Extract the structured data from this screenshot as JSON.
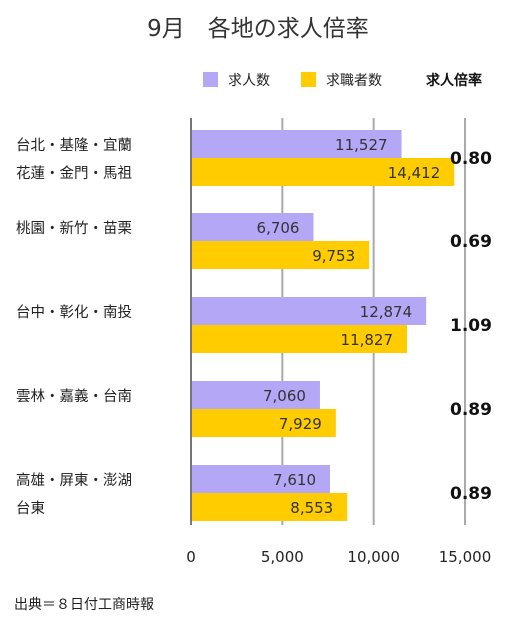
{
  "chart_data": {
    "type": "bar",
    "orientation": "horizontal",
    "title": "9月　各地の求人倍率",
    "categories": [
      [
        "台北・基隆・宜蘭",
        "花蓮・金門・馬祖"
      ],
      [
        "桃園・新竹・苗栗"
      ],
      [
        "台中・彰化・南投"
      ],
      [
        "雲林・嘉義・台南"
      ],
      [
        "高雄・屏東・澎湖",
        "台東"
      ]
    ],
    "series": [
      {
        "name": "求人数",
        "color": "#b4a7f5",
        "values": [
          11527,
          6706,
          12874,
          7060,
          7610
        ],
        "labels": [
          "11,527",
          "6,706",
          "12,874",
          "7,060",
          "7,610"
        ]
      },
      {
        "name": "求職者数",
        "color": "#ffcc00",
        "values": [
          14412,
          9753,
          11827,
          7929,
          8553
        ],
        "labels": [
          "14,412",
          "9,753",
          "11,827",
          "7,929",
          "8,553"
        ]
      }
    ],
    "ratio_header": "求人倍率",
    "ratios": [
      "0.80",
      "0.69",
      "1.09",
      "0.89",
      "0.89"
    ],
    "xlim": [
      0,
      15000
    ],
    "xticks": [
      0,
      5000,
      10000,
      15000
    ],
    "xtick_labels": [
      "0",
      "5,000",
      "10,000",
      "15,000"
    ],
    "grid": true,
    "legend_position": "top-right"
  },
  "source": "出典＝８日付工商時報"
}
